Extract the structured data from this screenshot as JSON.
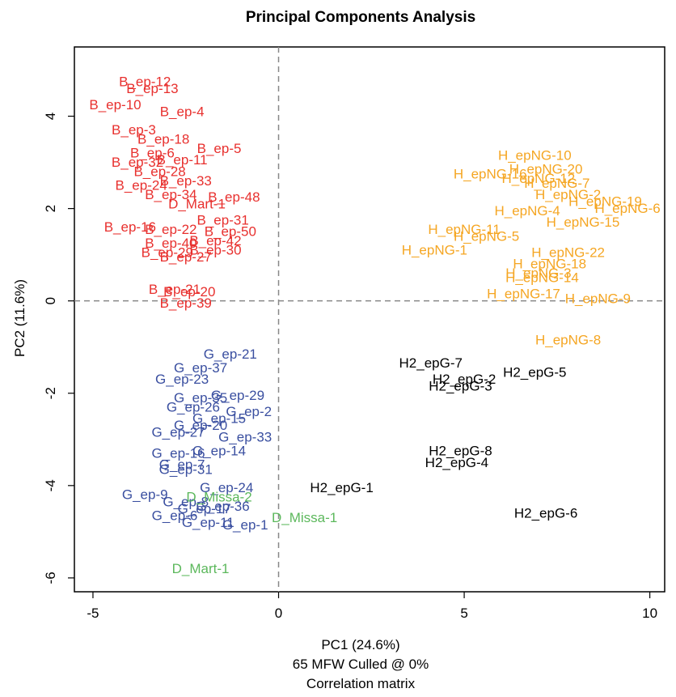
{
  "chart_data": {
    "type": "scatter",
    "title": "Principal Components Analysis",
    "xlabel": "PC1 (24.6%)",
    "xlabel_line2": "65 MFW  Culled @ 0%",
    "xlabel_line3": "Correlation matrix",
    "ylabel": "PC2 (11.6%)",
    "xlim": [
      -5.5,
      10.4
    ],
    "ylim": [
      -6.3,
      5.5
    ],
    "xticks": [
      -5,
      0,
      5,
      10
    ],
    "yticks": [
      -6,
      -4,
      -2,
      0,
      2,
      4
    ],
    "reference_lines": {
      "x": 0,
      "y": 0
    },
    "grid": false,
    "series": [
      {
        "color": "#e8302e",
        "points": [
          {
            "label": "B_ep-12",
            "x": -3.6,
            "y": 4.75
          },
          {
            "label": "B_ep-13",
            "x": -3.4,
            "y": 4.6
          },
          {
            "label": "B_ep-10",
            "x": -4.4,
            "y": 4.25
          },
          {
            "label": "B_ep-4",
            "x": -2.6,
            "y": 4.1
          },
          {
            "label": "B_ep-3",
            "x": -3.9,
            "y": 3.7
          },
          {
            "label": "B_ep-18",
            "x": -3.1,
            "y": 3.5
          },
          {
            "label": "B_ep-5",
            "x": -1.6,
            "y": 3.3
          },
          {
            "label": "B_ep-6",
            "x": -3.4,
            "y": 3.2
          },
          {
            "label": "B_ep-11",
            "x": -2.6,
            "y": 3.05
          },
          {
            "label": "B_ep-32",
            "x": -3.8,
            "y": 3.0
          },
          {
            "label": "B_ep-28",
            "x": -3.2,
            "y": 2.8
          },
          {
            "label": "B_ep-33",
            "x": -2.5,
            "y": 2.6
          },
          {
            "label": "B_ep-24",
            "x": -3.7,
            "y": 2.5
          },
          {
            "label": "B_ep-48",
            "x": -1.2,
            "y": 2.25
          },
          {
            "label": "B_ep-34",
            "x": -2.9,
            "y": 2.3
          },
          {
            "label": "D_Mart-1",
            "x": -2.2,
            "y": 2.1
          },
          {
            "label": "B_ep-31",
            "x": -1.5,
            "y": 1.75
          },
          {
            "label": "B_ep-16",
            "x": -4.0,
            "y": 1.6
          },
          {
            "label": "B_ep-22",
            "x": -2.9,
            "y": 1.55
          },
          {
            "label": "B_ep-50",
            "x": -1.3,
            "y": 1.5
          },
          {
            "label": "B_ep-42",
            "x": -1.7,
            "y": 1.3
          },
          {
            "label": "B_ep-40",
            "x": -2.9,
            "y": 1.25
          },
          {
            "label": "B_ep-30",
            "x": -1.7,
            "y": 1.1
          },
          {
            "label": "B_ep-29",
            "x": -3.0,
            "y": 1.05
          },
          {
            "label": "B_ep-27",
            "x": -2.5,
            "y": 0.95
          },
          {
            "label": "B_ep-21",
            "x": -2.8,
            "y": 0.25
          },
          {
            "label": "B_ep-20",
            "x": -2.4,
            "y": 0.2
          },
          {
            "label": "B_ep-39",
            "x": -2.5,
            "y": -0.05
          }
        ]
      },
      {
        "color": "#f5a623",
        "points": [
          {
            "label": "H_epNG-10",
            "x": 6.9,
            "y": 3.15
          },
          {
            "label": "H_epNG-20",
            "x": 7.2,
            "y": 2.85
          },
          {
            "label": "H_epNG-16",
            "x": 5.7,
            "y": 2.75
          },
          {
            "label": "H_epNG-12",
            "x": 7.0,
            "y": 2.65
          },
          {
            "label": "H_epNG-7",
            "x": 7.5,
            "y": 2.55
          },
          {
            "label": "H_epNG-2",
            "x": 7.8,
            "y": 2.3
          },
          {
            "label": "H_epNG-19",
            "x": 8.8,
            "y": 2.15
          },
          {
            "label": "H_epNG-6",
            "x": 9.4,
            "y": 2.0
          },
          {
            "label": "H_epNG-4",
            "x": 6.7,
            "y": 1.95
          },
          {
            "label": "H_epNG-15",
            "x": 8.2,
            "y": 1.7
          },
          {
            "label": "H_epNG-11",
            "x": 5.0,
            "y": 1.55
          },
          {
            "label": "H_epNG-5",
            "x": 5.6,
            "y": 1.4
          },
          {
            "label": "H_epNG-1",
            "x": 4.2,
            "y": 1.1
          },
          {
            "label": "H_epNG-22",
            "x": 7.8,
            "y": 1.05
          },
          {
            "label": "H_epNG-18",
            "x": 7.3,
            "y": 0.8
          },
          {
            "label": "H_epNG-3",
            "x": 7.0,
            "y": 0.6
          },
          {
            "label": "H_epNG-14",
            "x": 7.1,
            "y": 0.5
          },
          {
            "label": "H_epNG-17",
            "x": 6.6,
            "y": 0.15
          },
          {
            "label": "H_epNG-9",
            "x": 8.6,
            "y": 0.05
          },
          {
            "label": "H_epNG-8",
            "x": 7.8,
            "y": -0.85
          }
        ]
      },
      {
        "color": "#000000",
        "points": [
          {
            "label": "H2_epG-7",
            "x": 4.1,
            "y": -1.35
          },
          {
            "label": "H2_epG-5",
            "x": 6.9,
            "y": -1.55
          },
          {
            "label": "H2_epG-2",
            "x": 5.0,
            "y": -1.7
          },
          {
            "label": "H2_epG-3",
            "x": 4.9,
            "y": -1.85
          },
          {
            "label": "H2_epG-8",
            "x": 4.9,
            "y": -3.25
          },
          {
            "label": "H2_epG-4",
            "x": 4.8,
            "y": -3.5
          },
          {
            "label": "H2_epG-1",
            "x": 1.7,
            "y": -4.05
          },
          {
            "label": "H2_epG-6",
            "x": 7.2,
            "y": -4.6
          }
        ]
      },
      {
        "color": "#3a4fa0",
        "points": [
          {
            "label": "G_ep-21",
            "x": -1.3,
            "y": -1.15
          },
          {
            "label": "G_ep-37",
            "x": -2.1,
            "y": -1.45
          },
          {
            "label": "G_ep-23",
            "x": -2.6,
            "y": -1.7
          },
          {
            "label": "G_ep-29",
            "x": -1.1,
            "y": -2.05
          },
          {
            "label": "G_ep-35",
            "x": -2.1,
            "y": -2.1
          },
          {
            "label": "G_ep-26",
            "x": -2.3,
            "y": -2.3
          },
          {
            "label": "G_ep-2",
            "x": -0.8,
            "y": -2.4
          },
          {
            "label": "G_ep-15",
            "x": -1.6,
            "y": -2.55
          },
          {
            "label": "G_ep-20",
            "x": -2.1,
            "y": -2.7
          },
          {
            "label": "G_ep-33",
            "x": -0.9,
            "y": -2.95
          },
          {
            "label": "G_ep-27",
            "x": -2.7,
            "y": -2.85
          },
          {
            "label": "G_ep-14",
            "x": -1.6,
            "y": -3.25
          },
          {
            "label": "G_ep-16",
            "x": -2.7,
            "y": -3.3
          },
          {
            "label": "G_ep-7",
            "x": -2.6,
            "y": -3.55
          },
          {
            "label": "G_ep-31",
            "x": -2.5,
            "y": -3.65
          },
          {
            "label": "G_ep-24",
            "x": -1.4,
            "y": -4.05
          },
          {
            "label": "G_ep-9",
            "x": -3.6,
            "y": -4.2
          },
          {
            "label": "G_ep-8",
            "x": -2.5,
            "y": -4.35
          },
          {
            "label": "G_ep-36",
            "x": -1.5,
            "y": -4.45
          },
          {
            "label": "G_ep-17",
            "x": -2.0,
            "y": -4.5
          },
          {
            "label": "G_ep-6",
            "x": -2.8,
            "y": -4.65
          },
          {
            "label": "G_ep-11",
            "x": -1.9,
            "y": -4.8
          },
          {
            "label": "G_ep-1",
            "x": -0.9,
            "y": -4.85
          }
        ]
      },
      {
        "color": "#5cb85c",
        "points": [
          {
            "label": "D_Missa-2",
            "x": -1.6,
            "y": -4.25
          },
          {
            "label": "D_Missa-1",
            "x": 0.7,
            "y": -4.7
          },
          {
            "label": "D_Mart-1",
            "x": -2.1,
            "y": -5.8
          }
        ]
      }
    ]
  }
}
